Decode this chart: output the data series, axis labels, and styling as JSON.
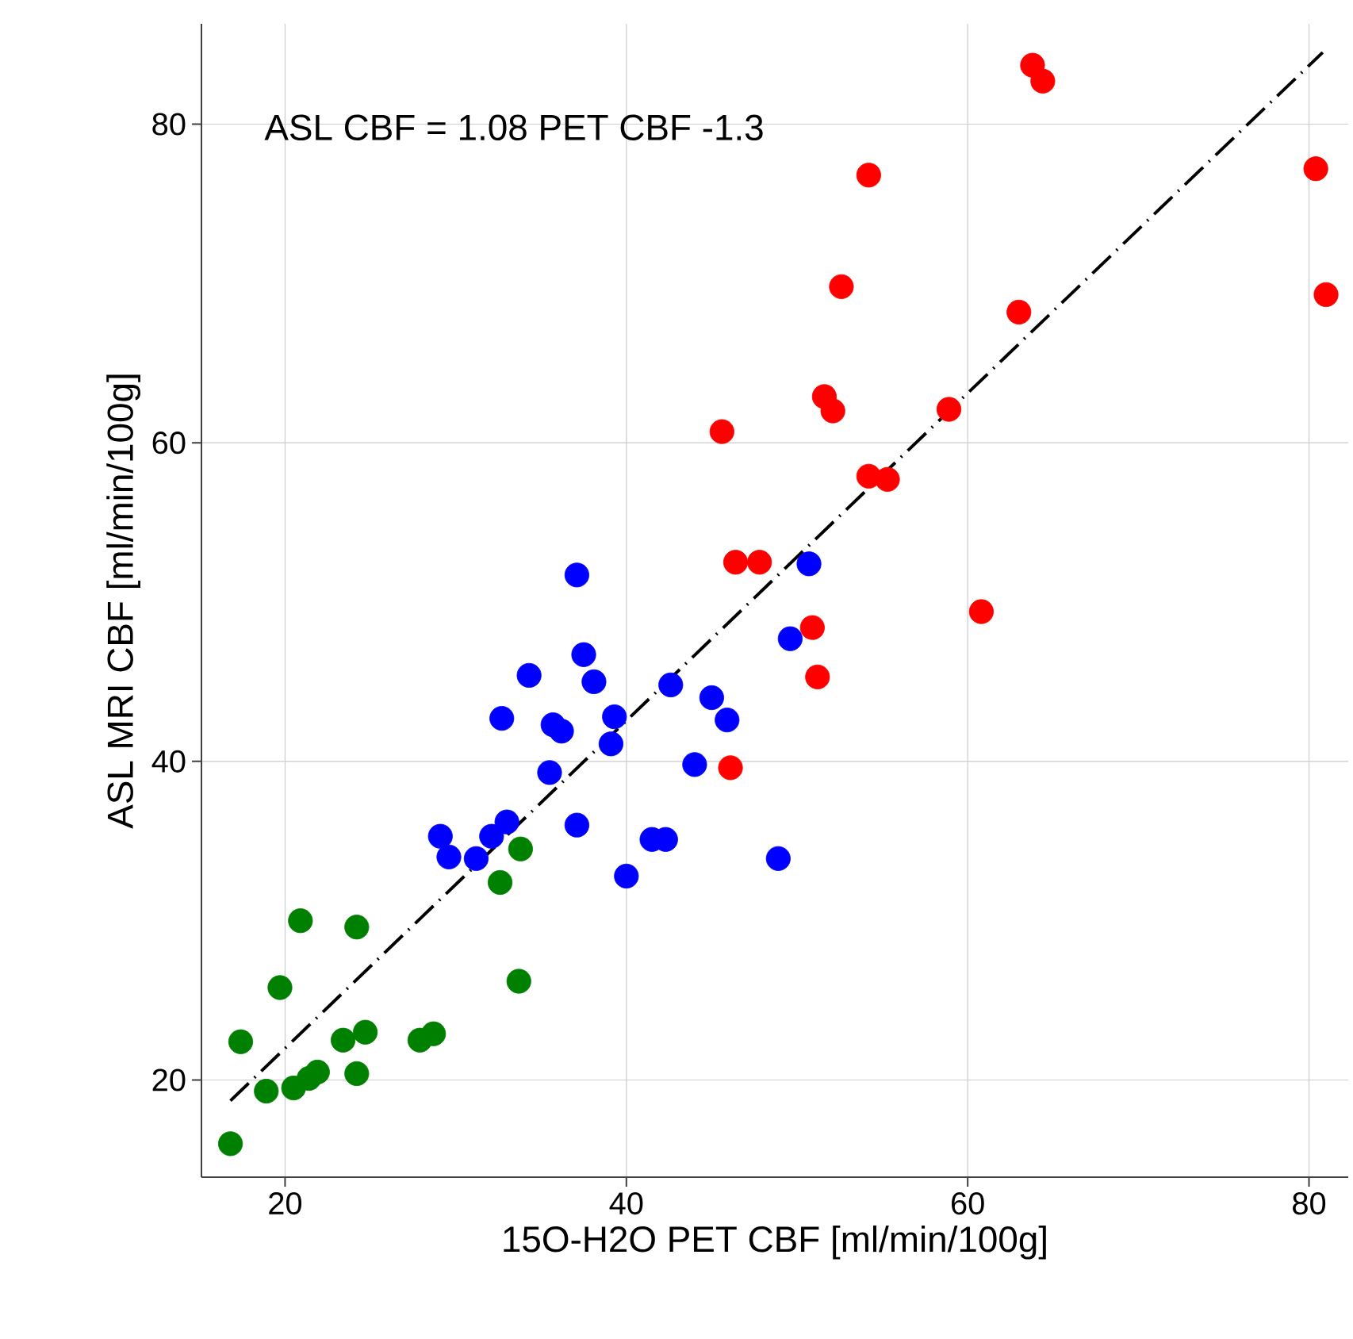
{
  "chart_data": {
    "type": "scatter",
    "xlabel": "15O-H2O PET CBF [ml/min/100g]",
    "ylabel": "ASL MRI CBF [ml/min/100g]",
    "annotations": [
      "ASL CBF = 1.08 PET CBF -1.3"
    ],
    "xlim": [
      15.1,
      82.3
    ],
    "ylim": [
      13.9,
      86.3
    ],
    "xticks": [
      20,
      40,
      60,
      80
    ],
    "yticks": [
      20,
      40,
      60,
      80
    ],
    "grid": true,
    "series": [
      {
        "type": "scatter",
        "marker": "circle",
        "color": "#008000",
        "x": [
          16.8,
          17.4,
          18.9,
          19.7,
          20.5,
          21.4,
          21.9,
          20.9,
          24.2,
          24.2,
          24.7,
          23.4,
          27.9,
          28.7,
          32.6,
          33.8,
          33.7
        ],
        "values": [
          16.0,
          22.4,
          19.3,
          25.8,
          19.5,
          20.1,
          20.5,
          30.0,
          20.4,
          29.6,
          23.0,
          22.5,
          22.5,
          22.9,
          32.4,
          34.5,
          26.2
        ]
      },
      {
        "type": "scatter",
        "marker": "circle",
        "color": "#0000ff",
        "x": [
          37.1,
          29.1,
          29.6,
          31.2,
          32.1,
          33.0,
          32.7,
          34.3,
          35.5,
          35.7,
          36.2,
          37.5,
          38.1,
          39.3,
          39.1,
          37.1,
          40.0,
          41.5,
          42.3,
          42.6,
          44.0,
          45.0,
          45.9,
          48.9,
          49.6,
          50.7
        ],
        "values": [
          51.7,
          35.3,
          34.0,
          33.9,
          35.3,
          36.2,
          42.7,
          45.4,
          39.3,
          42.3,
          41.9,
          46.7,
          45.0,
          42.8,
          41.1,
          36.0,
          32.8,
          35.1,
          35.1,
          44.8,
          39.8,
          44.0,
          42.6,
          33.9,
          47.7,
          52.4
        ]
      },
      {
        "type": "scatter",
        "marker": "circle",
        "color": "#ff0000",
        "x": [
          63.8,
          64.4,
          54.2,
          80.4,
          81.0,
          52.6,
          63.0,
          51.6,
          52.1,
          45.6,
          58.9,
          54.2,
          55.3,
          46.4,
          47.8,
          60.8,
          50.9,
          51.2,
          46.1
        ],
        "values": [
          83.7,
          82.7,
          76.8,
          77.2,
          69.3,
          69.8,
          68.2,
          62.9,
          62.0,
          60.7,
          62.1,
          57.9,
          57.7,
          52.5,
          52.5,
          49.4,
          48.4,
          45.3,
          39.6
        ]
      },
      {
        "type": "line",
        "color": "#000000",
        "line_style": "dashdot",
        "marker": "none",
        "x": [
          16.8,
          80.8
        ],
        "values": [
          18.7,
          84.5
        ]
      }
    ]
  }
}
